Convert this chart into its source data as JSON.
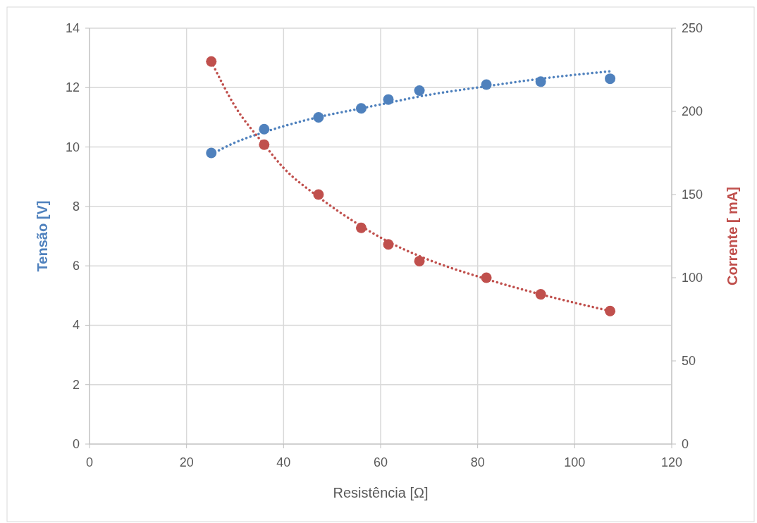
{
  "chart_data": {
    "type": "scatter",
    "xlabel": "Resistência [Ω]",
    "ylabel": "Tensão [V]",
    "y2label": "Corrente [ mA]",
    "xlim": [
      0,
      120
    ],
    "xticks": [
      0,
      20,
      40,
      60,
      80,
      100,
      120
    ],
    "ylim": [
      0,
      14
    ],
    "yticks": [
      0,
      2,
      4,
      6,
      8,
      10,
      12,
      14
    ],
    "y2lim": [
      0,
      250
    ],
    "y2ticks": [
      0,
      50,
      100,
      150,
      200,
      250
    ],
    "grid": true,
    "series": [
      {
        "marker": "circle",
        "color": "#4f81bd",
        "x": [
          25.1,
          36.0,
          47.2,
          56.0,
          61.6,
          68.0,
          81.8,
          93.0,
          107.3
        ],
        "values": [
          9.8,
          10.6,
          11.0,
          11.3,
          11.6,
          11.9,
          12.1,
          12.2,
          12.3
        ]
      },
      {
        "marker": "circle",
        "color": "#c0504d",
        "axis": "y2",
        "x": [
          25.1,
          36.0,
          47.2,
          56.0,
          61.6,
          68.0,
          81.8,
          93.0,
          107.3
        ],
        "values": [
          230,
          180,
          150,
          130,
          120,
          110,
          100,
          90,
          80
        ]
      },
      {
        "type": "line",
        "color": "#4f81bd",
        "line_style": "dotted",
        "marker": "none",
        "x": [
          25.1,
          30,
          36,
          40,
          47,
          56,
          62,
          68,
          82,
          93,
          107.3
        ],
        "values": [
          9.75,
          10.15,
          10.5,
          10.7,
          11.0,
          11.3,
          11.5,
          11.7,
          12.05,
          12.3,
          12.55
        ]
      },
      {
        "type": "line",
        "color": "#c0504d",
        "line_style": "dotted",
        "marker": "none",
        "axis": "y2",
        "x": [
          25.1,
          30,
          36,
          40,
          47,
          56,
          62,
          68,
          82,
          93,
          107.3
        ],
        "values": [
          230,
          203,
          180,
          166,
          149,
          131,
          121,
          113,
          99,
          90,
          80
        ]
      }
    ]
  }
}
